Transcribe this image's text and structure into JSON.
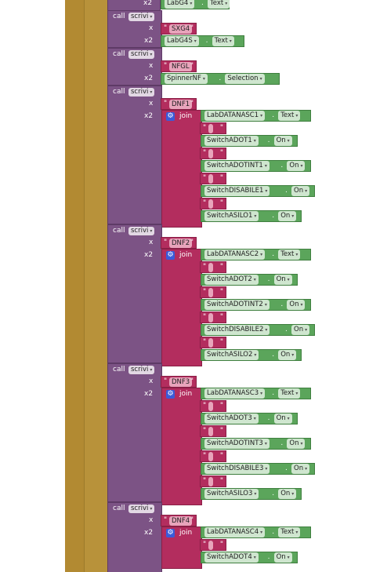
{
  "labels": {
    "call": "call",
    "x": "x",
    "x2": "x2",
    "join": "join",
    "dot": ".",
    "quote_open": "\"",
    "quote_close": "\"",
    "procedure": "scrivi",
    "empty_string": " "
  },
  "icons": {
    "dropdown": "▾",
    "gear": "⚙"
  },
  "top_partial": {
    "component": "LabG4",
    "property": "Text"
  },
  "calls": [
    {
      "x_text": "SXG4",
      "x2_component": "LabG4S",
      "x2_property": "Text"
    },
    {
      "x_text": "NFGL",
      "x2_component": "SpinnerNF",
      "x2_property": "Selection"
    },
    {
      "x_text": "DNF1",
      "join": [
        {
          "component": "LabDATANASC1",
          "property": "Text"
        },
        {
          "component": "SwitchADOT1",
          "property": "On"
        },
        {
          "component": "SwitchADOTINT1",
          "property": "On"
        },
        {
          "component": "SwitchDISABILE1",
          "property": "On"
        },
        {
          "component": "SwitchASILO1",
          "property": "On"
        }
      ]
    },
    {
      "x_text": "DNF2",
      "join": [
        {
          "component": "LabDATANASC2",
          "property": "Text"
        },
        {
          "component": "SwitchADOT2",
          "property": "On"
        },
        {
          "component": "SwitchADOTINT2",
          "property": "On"
        },
        {
          "component": "SwitchDISABILE2",
          "property": "On"
        },
        {
          "component": "SwitchASILO2",
          "property": "On"
        }
      ]
    },
    {
      "x_text": "DNF3",
      "join": [
        {
          "component": "LabDATANASC3",
          "property": "Text"
        },
        {
          "component": "SwitchADOT3",
          "property": "On"
        },
        {
          "component": "SwitchADOTINT3",
          "property": "On"
        },
        {
          "component": "SwitchDISABILE3",
          "property": "On"
        },
        {
          "component": "SwitchASILO3",
          "property": "On"
        }
      ]
    },
    {
      "x_text": "DNF4",
      "join": [
        {
          "component": "LabDATANASC4",
          "property": "Text"
        },
        {
          "component": "SwitchADOT4",
          "property": "On"
        }
      ]
    }
  ],
  "colors": {
    "outer_bar": "#b28a32",
    "procedure_block": "#7c5385",
    "text_block": "#b32d5e",
    "component_block": "#5ba55b"
  }
}
